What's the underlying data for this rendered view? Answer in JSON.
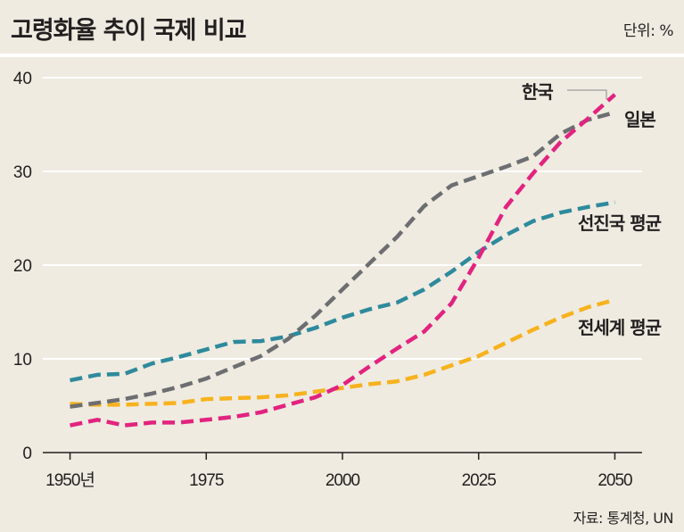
{
  "header": {
    "title": "고령화율 추이 국제 비교",
    "unit": "단위: %"
  },
  "source": "자료: 통계청, UN",
  "chart_data": {
    "type": "line",
    "title": "고령화율 추이 국제 비교",
    "xlabel": "",
    "ylabel": "",
    "xlim": [
      1945,
      2055
    ],
    "ylim": [
      0,
      40
    ],
    "x_tick_labels": [
      "1950년",
      "1975",
      "2000",
      "2025",
      "2050"
    ],
    "x_ticks": [
      1950,
      1975,
      2000,
      2025,
      2050
    ],
    "y_ticks": [
      0,
      10,
      20,
      30,
      40
    ],
    "y_tick_labels": [
      "0",
      "10",
      "20",
      "30",
      "40"
    ],
    "grid": "horizontal",
    "line_style": "dashed",
    "x": [
      1950,
      1955,
      1960,
      1965,
      1970,
      1975,
      1980,
      1985,
      1990,
      1995,
      2000,
      2005,
      2010,
      2015,
      2020,
      2025,
      2030,
      2035,
      2040,
      2045,
      2050
    ],
    "series": [
      {
        "name": "한국",
        "color": "#e2237f",
        "values": [
          2.9,
          3.5,
          2.9,
          3.2,
          3.2,
          3.5,
          3.8,
          4.3,
          5.1,
          5.9,
          7.2,
          9.2,
          11.1,
          12.9,
          15.9,
          20.8,
          26.2,
          29.8,
          33.1,
          35.6,
          38.2
        ]
      },
      {
        "name": "일본",
        "color": "#6d6e71",
        "values": [
          4.9,
          5.3,
          5.7,
          6.3,
          7.0,
          7.9,
          9.1,
          10.3,
          12.1,
          14.6,
          17.4,
          20.2,
          23.0,
          26.3,
          28.5,
          29.5,
          30.5,
          31.6,
          34.0,
          35.5,
          36.3
        ]
      },
      {
        "name": "선진국 평균",
        "color": "#2e8a9c",
        "values": [
          7.7,
          8.3,
          8.4,
          9.5,
          10.2,
          11.0,
          11.8,
          11.9,
          12.4,
          13.3,
          14.4,
          15.3,
          16.0,
          17.4,
          19.3,
          21.4,
          23.2,
          24.7,
          25.6,
          26.2,
          26.7
        ]
      },
      {
        "name": "전세계 평균",
        "color": "#f7b21d",
        "values": [
          5.2,
          5.1,
          5.1,
          5.2,
          5.3,
          5.7,
          5.8,
          5.9,
          6.1,
          6.5,
          6.9,
          7.3,
          7.6,
          8.3,
          9.3,
          10.3,
          11.7,
          13.1,
          14.4,
          15.5,
          16.3
        ]
      }
    ]
  }
}
